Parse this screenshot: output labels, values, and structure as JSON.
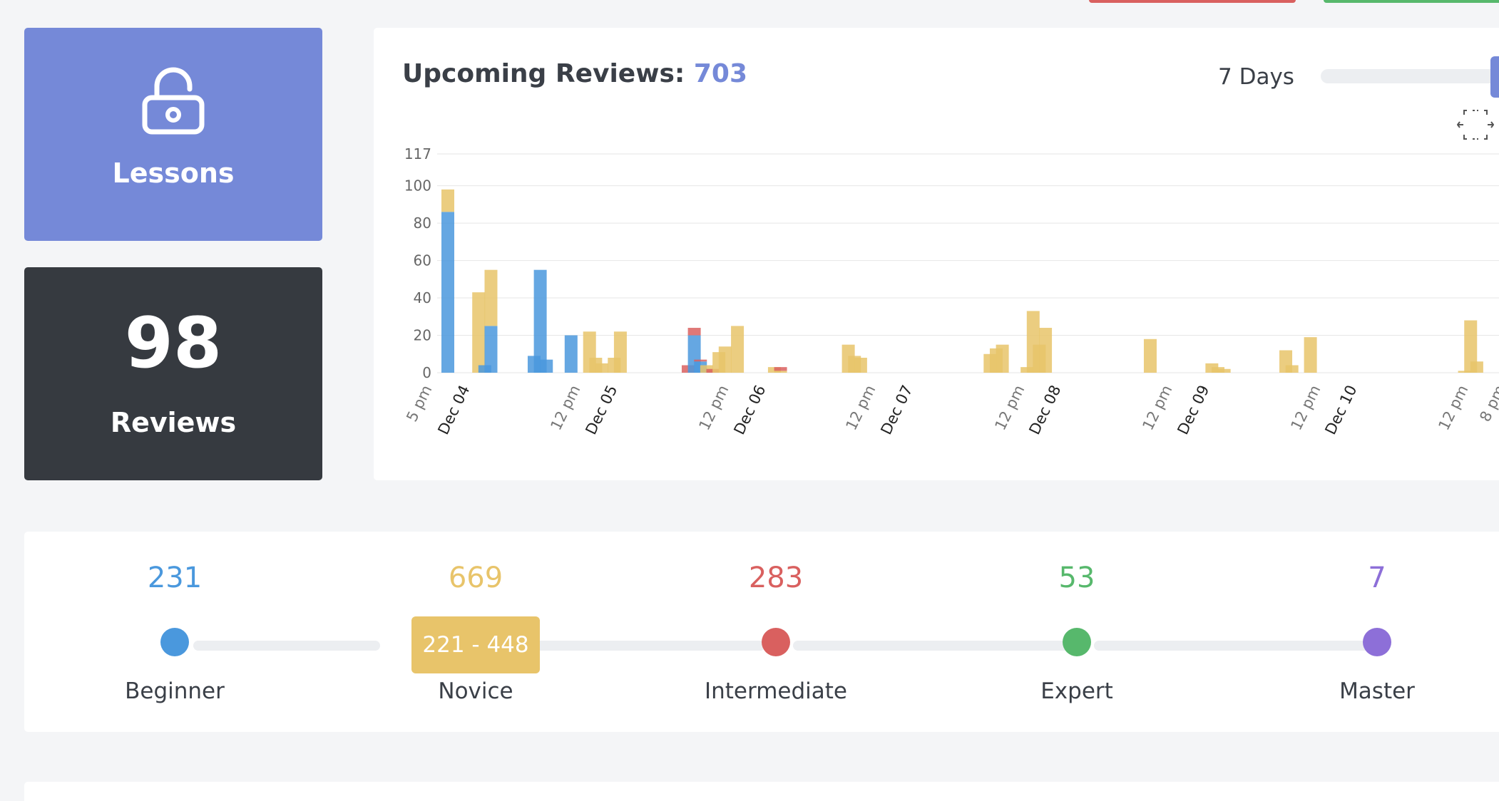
{
  "colors": {
    "accent": "#7589d8",
    "beginner": "#4a98dd",
    "novice": "#e8c46a",
    "intermediate": "#d9605f",
    "expert": "#57b86c",
    "master": "#8d6fd8",
    "dark_card": "#363a40"
  },
  "lessons_card": {
    "label": "Lessons",
    "icon": "unlock-icon"
  },
  "reviews_card": {
    "count": "98",
    "label": "Reviews"
  },
  "upcoming": {
    "title": "Upcoming Reviews:",
    "count": "703",
    "range_label": "7 Days",
    "expand_icon": "expand-icon"
  },
  "chart_data": {
    "type": "bar",
    "stacked": true,
    "ylim": [
      0,
      117
    ],
    "yticks": [
      "117",
      "100",
      "80",
      "60",
      "40",
      "20",
      "0"
    ],
    "xtick_labels": [
      "5 pm",
      "Dec 04",
      "12 pm",
      "Dec 05",
      "12 pm",
      "Dec 06",
      "12 pm",
      "Dec 07",
      "12 pm",
      "Dec 08",
      "12 pm",
      "Dec 09",
      "12 pm",
      "Dec 10",
      "12 pm",
      "8 pm"
    ],
    "x_start": "Dec 03 5 pm",
    "x_end": "Dec 10 8 pm",
    "series": [
      {
        "key": "beginner",
        "color": "#4a98dd"
      },
      {
        "key": "novice",
        "color": "#e8c46a"
      },
      {
        "key": "intermediate",
        "color": "#d9605f"
      }
    ],
    "bars": [
      {
        "t": "Dec 03 5 pm",
        "beginner": 86,
        "novice": 12,
        "intermediate": 0
      },
      {
        "t": "Dec 03 10 pm",
        "beginner": 0,
        "novice": 43,
        "intermediate": 0
      },
      {
        "t": "Dec 03 11 pm",
        "beginner": 4,
        "novice": 0,
        "intermediate": 0
      },
      {
        "t": "Dec 04 12 am",
        "beginner": 25,
        "novice": 30,
        "intermediate": 0
      },
      {
        "t": "Dec 04 7 am",
        "beginner": 9,
        "novice": 0,
        "intermediate": 0
      },
      {
        "t": "Dec 04 8 am",
        "beginner": 55,
        "novice": 0,
        "intermediate": 0
      },
      {
        "t": "Dec 04 9 am",
        "beginner": 7,
        "novice": 0,
        "intermediate": 0
      },
      {
        "t": "Dec 04 1 pm",
        "beginner": 20,
        "novice": 0,
        "intermediate": 0
      },
      {
        "t": "Dec 04 4 pm",
        "beginner": 0,
        "novice": 22,
        "intermediate": 0
      },
      {
        "t": "Dec 04 5 pm",
        "beginner": 0,
        "novice": 8,
        "intermediate": 0
      },
      {
        "t": "Dec 04 6 pm",
        "beginner": 0,
        "novice": 5,
        "intermediate": 0
      },
      {
        "t": "Dec 04 8 pm",
        "beginner": 0,
        "novice": 8,
        "intermediate": 0
      },
      {
        "t": "Dec 04 9 pm",
        "beginner": 0,
        "novice": 22,
        "intermediate": 0
      },
      {
        "t": "Dec 05 8 am",
        "beginner": 0,
        "novice": 0,
        "intermediate": 4
      },
      {
        "t": "Dec 05 9 am",
        "beginner": 20,
        "novice": 0,
        "intermediate": 4
      },
      {
        "t": "Dec 05 10 am",
        "beginner": 6,
        "novice": 0,
        "intermediate": 1
      },
      {
        "t": "Dec 05 11 am",
        "beginner": 0,
        "novice": 4,
        "intermediate": 0
      },
      {
        "t": "Dec 05 12 pm",
        "beginner": 0,
        "novice": 0,
        "intermediate": 2
      },
      {
        "t": "Dec 05 1 pm",
        "beginner": 0,
        "novice": 11,
        "intermediate": 0
      },
      {
        "t": "Dec 05 2 pm",
        "beginner": 0,
        "novice": 14,
        "intermediate": 0
      },
      {
        "t": "Dec 05 4 pm",
        "beginner": 0,
        "novice": 25,
        "intermediate": 0
      },
      {
        "t": "Dec 05 10 pm",
        "beginner": 0,
        "novice": 3,
        "intermediate": 0
      },
      {
        "t": "Dec 05 11 pm",
        "beginner": 0,
        "novice": 1,
        "intermediate": 2
      },
      {
        "t": "Dec 06 10 am",
        "beginner": 0,
        "novice": 15,
        "intermediate": 0
      },
      {
        "t": "Dec 06 11 am",
        "beginner": 0,
        "novice": 9,
        "intermediate": 0
      },
      {
        "t": "Dec 06 12 pm",
        "beginner": 0,
        "novice": 8,
        "intermediate": 0
      },
      {
        "t": "Dec 07 9 am",
        "beginner": 0,
        "novice": 10,
        "intermediate": 0
      },
      {
        "t": "Dec 07 10 am",
        "beginner": 0,
        "novice": 13,
        "intermediate": 0
      },
      {
        "t": "Dec 07 11 am",
        "beginner": 0,
        "novice": 15,
        "intermediate": 0
      },
      {
        "t": "Dec 07 3 pm",
        "beginner": 0,
        "novice": 3,
        "intermediate": 0
      },
      {
        "t": "Dec 07 4 pm",
        "beginner": 0,
        "novice": 33,
        "intermediate": 0
      },
      {
        "t": "Dec 07 5 pm",
        "beginner": 0,
        "novice": 15,
        "intermediate": 0
      },
      {
        "t": "Dec 07 6 pm",
        "beginner": 0,
        "novice": 24,
        "intermediate": 0
      },
      {
        "t": "Dec 08 11 am",
        "beginner": 0,
        "novice": 18,
        "intermediate": 0
      },
      {
        "t": "Dec 08 9 pm",
        "beginner": 0,
        "novice": 5,
        "intermediate": 0
      },
      {
        "t": "Dec 08 10 pm",
        "beginner": 0,
        "novice": 3,
        "intermediate": 0
      },
      {
        "t": "Dec 08 11 pm",
        "beginner": 0,
        "novice": 2,
        "intermediate": 0
      },
      {
        "t": "Dec 09 9 am",
        "beginner": 0,
        "novice": 12,
        "intermediate": 0
      },
      {
        "t": "Dec 09 10 am",
        "beginner": 0,
        "novice": 4,
        "intermediate": 0
      },
      {
        "t": "Dec 09 1 pm",
        "beginner": 0,
        "novice": 19,
        "intermediate": 0
      },
      {
        "t": "Dec 10 2 pm",
        "beginner": 0,
        "novice": 1,
        "intermediate": 0
      },
      {
        "t": "Dec 10 3 pm",
        "beginner": 0,
        "novice": 28,
        "intermediate": 0
      },
      {
        "t": "Dec 10 4 pm",
        "beginner": 0,
        "novice": 6,
        "intermediate": 0
      }
    ]
  },
  "levels": [
    {
      "name": "Beginner",
      "count": "231",
      "color": "#4a98dd"
    },
    {
      "name": "Novice",
      "count": "669",
      "color": "#e8c46a"
    },
    {
      "name": "Intermediate",
      "count": "283",
      "color": "#d9605f"
    },
    {
      "name": "Expert",
      "count": "53",
      "color": "#57b86c"
    },
    {
      "name": "Master",
      "count": "7",
      "color": "#8d6fd8"
    }
  ],
  "novice_range": "221 - 448"
}
